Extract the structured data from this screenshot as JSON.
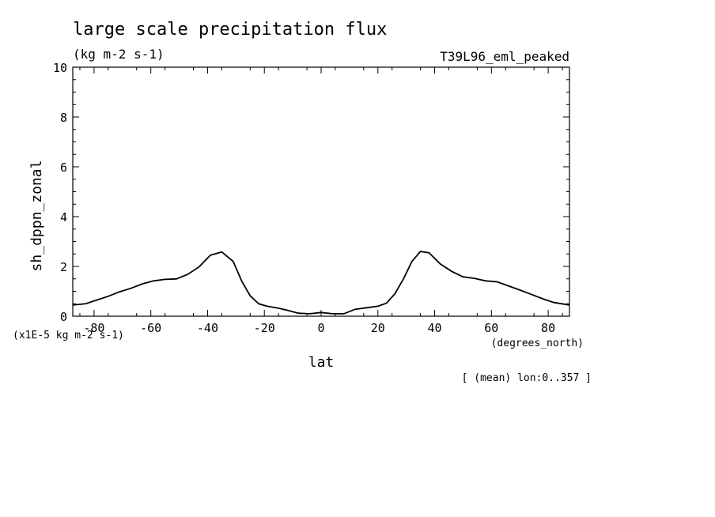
{
  "chart_data": {
    "type": "line",
    "title": "large scale precipitation flux",
    "subtitle": "(kg m-2 s-1)",
    "experiment": "T39L96_eml_peaked",
    "xlabel": "lat",
    "xunits": "(degrees_north)",
    "ylabel": "sh_dppn_zonal",
    "yunits": "(x1E-5 kg m-2 s-1)",
    "mean_note": "[ (mean) lon:0..357 ]",
    "xlim": [
      -87.5,
      87.5
    ],
    "ylim": [
      0,
      10
    ],
    "x_ticks": [
      -80,
      -60,
      -40,
      -20,
      0,
      20,
      40,
      60,
      80
    ],
    "x_tick_labels": [
      "-80",
      "-60",
      "-40",
      "-20",
      "0",
      "20",
      "40",
      "60",
      "80"
    ],
    "y_ticks": [
      0,
      2,
      4,
      6,
      8,
      10
    ],
    "y_tick_labels": [
      "0",
      "2",
      "4",
      "6",
      "8",
      "10"
    ],
    "grid": false,
    "x": [
      -87.5,
      -83,
      -79,
      -75,
      -71,
      -67,
      -63,
      -59,
      -55,
      -51,
      -47,
      -43,
      -39,
      -35,
      -31,
      -28,
      -25,
      -22,
      -19,
      -15,
      -12,
      -8,
      -4,
      0,
      4,
      8,
      12,
      16,
      20,
      23,
      26,
      29,
      32,
      35,
      38,
      42,
      46,
      50,
      54,
      58,
      62,
      66,
      70,
      74,
      78,
      82,
      87.5
    ],
    "y": [
      0.45,
      0.5,
      0.65,
      0.8,
      0.98,
      1.12,
      1.3,
      1.42,
      1.48,
      1.5,
      1.68,
      1.98,
      2.45,
      2.58,
      2.2,
      1.42,
      0.82,
      0.5,
      0.4,
      0.32,
      0.24,
      0.12,
      0.1,
      0.15,
      0.1,
      0.1,
      0.28,
      0.34,
      0.4,
      0.52,
      0.9,
      1.5,
      2.2,
      2.6,
      2.55,
      2.1,
      1.8,
      1.58,
      1.52,
      1.42,
      1.38,
      1.22,
      1.05,
      0.88,
      0.7,
      0.55,
      0.45
    ]
  }
}
